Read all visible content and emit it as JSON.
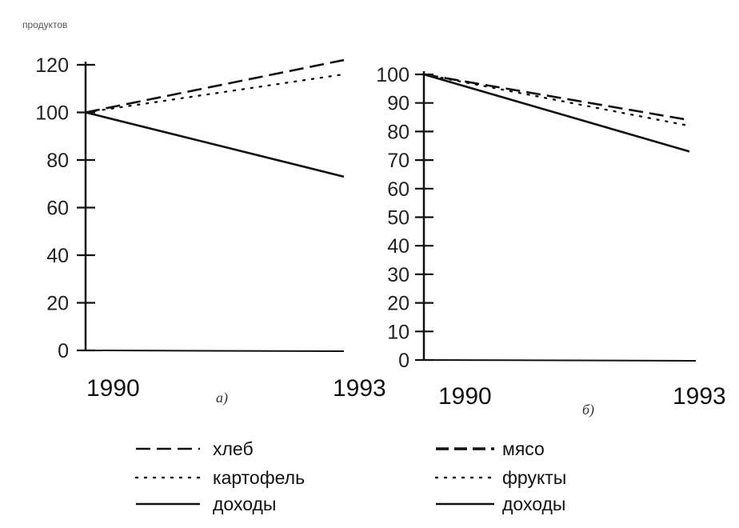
{
  "header_fragment": "продуктов",
  "chart_data": [
    {
      "type": "line",
      "panel_label": "а)",
      "x": [
        "1990",
        "1993"
      ],
      "yticks": [
        0,
        20,
        40,
        60,
        80,
        100,
        120
      ],
      "ylim": [
        0,
        120
      ],
      "series": [
        {
          "name": "хлеб",
          "style": "dashed",
          "values": [
            100,
            122
          ]
        },
        {
          "name": "картофель",
          "style": "dotted",
          "values": [
            100,
            116
          ]
        },
        {
          "name": "доходы",
          "style": "solid",
          "values": [
            100,
            73
          ]
        }
      ]
    },
    {
      "type": "line",
      "panel_label": "б)",
      "x": [
        "1990",
        "1993"
      ],
      "yticks": [
        0,
        10,
        20,
        30,
        40,
        50,
        60,
        70,
        80,
        90,
        100
      ],
      "ylim": [
        0,
        100
      ],
      "series": [
        {
          "name": "мясо",
          "style": "dashed",
          "values": [
            100,
            84
          ]
        },
        {
          "name": "фрукты",
          "style": "dotted",
          "values": [
            100,
            82
          ]
        },
        {
          "name": "доходы",
          "style": "solid",
          "values": [
            100,
            73
          ]
        }
      ]
    }
  ]
}
